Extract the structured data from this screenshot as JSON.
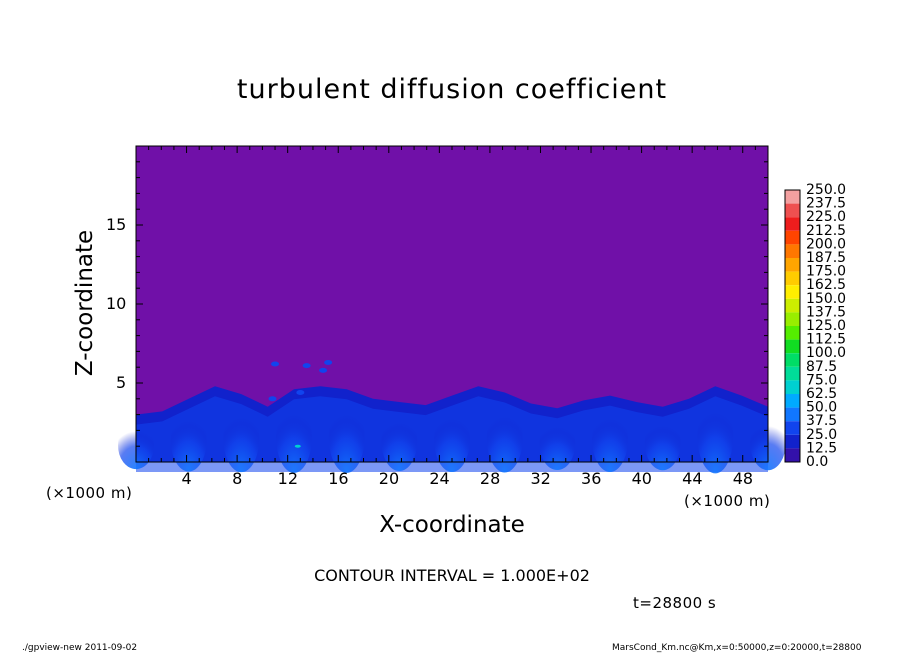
{
  "chart_data": {
    "type": "heatmap",
    "title": "turbulent diffusion coefficient",
    "xlabel": "X-coordinate",
    "ylabel": "Z-coordinate",
    "x_unit": "(×1000 m)",
    "y_unit": "(×1000 m)",
    "xlim": [
      0,
      50
    ],
    "ylim": [
      0,
      20
    ],
    "x_ticks": [
      4,
      8,
      12,
      16,
      20,
      24,
      28,
      32,
      36,
      40,
      44,
      48
    ],
    "y_ticks": [
      5,
      10,
      15
    ],
    "colorbar_levels": [
      "250.0",
      "237.5",
      "225.0",
      "212.5",
      "200.0",
      "187.5",
      "175.0",
      "162.5",
      "150.0",
      "137.5",
      "125.0",
      "112.5",
      "100.0",
      "87.5",
      "75.0",
      "62.5",
      "50.0",
      "37.5",
      "25.0",
      "12.5",
      "0.0"
    ],
    "colorbar_colors": [
      "#f3a0a0",
      "#ee5050",
      "#ee1d1d",
      "#ff4400",
      "#ff7700",
      "#ffa500",
      "#ffcc00",
      "#ffee00",
      "#ccee00",
      "#99ee00",
      "#55ee00",
      "#11dd22",
      "#00dd66",
      "#00dd99",
      "#00d0d0",
      "#00aaff",
      "#1177ff",
      "#1144ee",
      "#1122cc",
      "#3311aa",
      "#7010a8"
    ],
    "background_value_color": "#7010a8",
    "boundary_layer_top_km": [
      3.0,
      3.2,
      4.0,
      4.8,
      4.3,
      3.5,
      4.6,
      4.8,
      4.6,
      4.0,
      3.8,
      3.6,
      4.2,
      4.8,
      4.4,
      3.7,
      3.4,
      3.9,
      4.2,
      3.8,
      3.5,
      4.0,
      4.8,
      4.2,
      3.5
    ],
    "contour_interval": "CONTOUR INTERVAL = 1.000E+02",
    "time": "t=28800 s"
  },
  "footer": {
    "left": "./gpview-new   2011-09-02",
    "right": "MarsCond_Km.nc@Km,x=0:50000,z=0:20000,t=28800"
  }
}
